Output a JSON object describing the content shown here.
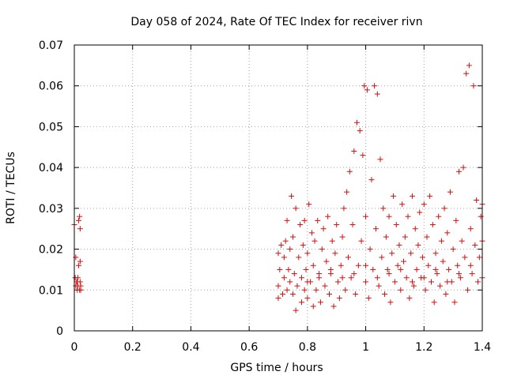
{
  "chart_data": {
    "type": "scatter",
    "title": "Day 058 of 2024, Rate Of TEC Index for receiver rivn",
    "xlabel": "GPS time / hours",
    "ylabel": "ROTI / TECUs",
    "xlim": [
      0,
      1.4
    ],
    "ylim": [
      0,
      0.07
    ],
    "x_ticks": [
      "0",
      "0.2",
      "0.4",
      "0.6",
      "0.8",
      "1",
      "1.2",
      "1.4"
    ],
    "y_ticks": [
      "0",
      "0.01",
      "0.02",
      "0.03",
      "0.04",
      "0.05",
      "0.06",
      "0.07"
    ],
    "grid": true,
    "marker": "+",
    "color": "#d01010",
    "series": [
      {
        "name": "ROTI",
        "points": [
          [
            0.0,
            0.026
          ],
          [
            0.005,
            0.018
          ],
          [
            0.008,
            0.012
          ],
          [
            0.01,
            0.01
          ],
          [
            0.012,
            0.011
          ],
          [
            0.015,
            0.027
          ],
          [
            0.018,
            0.028
          ],
          [
            0.02,
            0.017
          ],
          [
            0.02,
            0.012
          ],
          [
            0.022,
            0.01
          ],
          [
            0.005,
            0.011
          ],
          [
            0.012,
            0.013
          ],
          [
            0.015,
            0.016
          ],
          [
            0.018,
            0.01
          ],
          [
            0.02,
            0.025
          ],
          [
            0.003,
            0.013
          ],
          [
            0.01,
            0.012
          ],
          [
            0.022,
            0.011
          ],
          [
            0.7,
            0.008
          ],
          [
            0.7,
            0.011
          ],
          [
            0.7,
            0.019
          ],
          [
            0.705,
            0.015
          ],
          [
            0.71,
            0.021
          ],
          [
            0.715,
            0.009
          ],
          [
            0.72,
            0.013
          ],
          [
            0.72,
            0.018
          ],
          [
            0.725,
            0.022
          ],
          [
            0.73,
            0.01
          ],
          [
            0.73,
            0.027
          ],
          [
            0.735,
            0.015
          ],
          [
            0.74,
            0.012
          ],
          [
            0.74,
            0.02
          ],
          [
            0.745,
            0.033
          ],
          [
            0.75,
            0.009
          ],
          [
            0.75,
            0.023
          ],
          [
            0.755,
            0.014
          ],
          [
            0.76,
            0.005
          ],
          [
            0.76,
            0.03
          ],
          [
            0.765,
            0.011
          ],
          [
            0.77,
            0.018
          ],
          [
            0.775,
            0.026
          ],
          [
            0.78,
            0.007
          ],
          [
            0.78,
            0.013
          ],
          [
            0.785,
            0.021
          ],
          [
            0.79,
            0.01
          ],
          [
            0.79,
            0.027
          ],
          [
            0.795,
            0.015
          ],
          [
            0.8,
            0.008
          ],
          [
            0.8,
            0.019
          ],
          [
            0.805,
            0.031
          ],
          [
            0.81,
            0.012
          ],
          [
            0.815,
            0.024
          ],
          [
            0.82,
            0.006
          ],
          [
            0.82,
            0.016
          ],
          [
            0.825,
            0.022
          ],
          [
            0.83,
            0.01
          ],
          [
            0.835,
            0.027
          ],
          [
            0.84,
            0.014
          ],
          [
            0.845,
            0.007
          ],
          [
            0.85,
            0.02
          ],
          [
            0.855,
            0.025
          ],
          [
            0.86,
            0.011
          ],
          [
            0.865,
            0.017
          ],
          [
            0.87,
            0.028
          ],
          [
            0.875,
            0.009
          ],
          [
            0.88,
            0.014
          ],
          [
            0.885,
            0.022
          ],
          [
            0.89,
            0.006
          ],
          [
            0.895,
            0.019
          ],
          [
            0.9,
            0.026
          ],
          [
            0.905,
            0.012
          ],
          [
            0.91,
            0.008
          ],
          [
            0.915,
            0.016
          ],
          [
            0.92,
            0.023
          ],
          [
            0.925,
            0.03
          ],
          [
            0.93,
            0.01
          ],
          [
            0.935,
            0.034
          ],
          [
            0.94,
            0.018
          ],
          [
            0.945,
            0.039
          ],
          [
            0.95,
            0.013
          ],
          [
            0.955,
            0.026
          ],
          [
            0.96,
            0.044
          ],
          [
            0.965,
            0.009
          ],
          [
            0.97,
            0.051
          ],
          [
            0.975,
            0.016
          ],
          [
            0.98,
            0.049
          ],
          [
            0.985,
            0.022
          ],
          [
            0.99,
            0.043
          ],
          [
            0.995,
            0.06
          ],
          [
            1.0,
            0.028
          ],
          [
            1.0,
            0.012
          ],
          [
            1.005,
            0.059
          ],
          [
            1.01,
            0.008
          ],
          [
            1.015,
            0.02
          ],
          [
            1.02,
            0.037
          ],
          [
            1.025,
            0.015
          ],
          [
            1.03,
            0.06
          ],
          [
            1.035,
            0.025
          ],
          [
            1.04,
            0.058
          ],
          [
            1.045,
            0.011
          ],
          [
            1.05,
            0.042
          ],
          [
            1.055,
            0.018
          ],
          [
            1.06,
            0.03
          ],
          [
            1.065,
            0.009
          ],
          [
            1.07,
            0.023
          ],
          [
            1.075,
            0.015
          ],
          [
            1.08,
            0.028
          ],
          [
            1.085,
            0.007
          ],
          [
            1.09,
            0.019
          ],
          [
            1.095,
            0.033
          ],
          [
            1.1,
            0.012
          ],
          [
            1.105,
            0.026
          ],
          [
            1.11,
            0.016
          ],
          [
            1.115,
            0.021
          ],
          [
            1.12,
            0.01
          ],
          [
            1.125,
            0.031
          ],
          [
            1.13,
            0.017
          ],
          [
            1.135,
            0.023
          ],
          [
            1.14,
            0.013
          ],
          [
            1.145,
            0.028
          ],
          [
            1.15,
            0.008
          ],
          [
            1.155,
            0.019
          ],
          [
            1.16,
            0.033
          ],
          [
            1.165,
            0.011
          ],
          [
            1.17,
            0.025
          ],
          [
            1.175,
            0.015
          ],
          [
            1.18,
            0.021
          ],
          [
            1.185,
            0.029
          ],
          [
            1.19,
            0.013
          ],
          [
            1.195,
            0.018
          ],
          [
            1.2,
            0.031
          ],
          [
            1.205,
            0.01
          ],
          [
            1.21,
            0.023
          ],
          [
            1.215,
            0.016
          ],
          [
            1.22,
            0.033
          ],
          [
            1.225,
            0.012
          ],
          [
            1.23,
            0.026
          ],
          [
            1.235,
            0.007
          ],
          [
            1.24,
            0.019
          ],
          [
            1.245,
            0.014
          ],
          [
            1.25,
            0.028
          ],
          [
            1.255,
            0.011
          ],
          [
            1.26,
            0.022
          ],
          [
            1.265,
            0.017
          ],
          [
            1.27,
            0.03
          ],
          [
            1.275,
            0.009
          ],
          [
            1.28,
            0.024
          ],
          [
            1.285,
            0.015
          ],
          [
            1.29,
            0.034
          ],
          [
            1.295,
            0.012
          ],
          [
            1.3,
            0.02
          ],
          [
            1.305,
            0.007
          ],
          [
            1.31,
            0.027
          ],
          [
            1.315,
            0.016
          ],
          [
            1.32,
            0.039
          ],
          [
            1.325,
            0.013
          ],
          [
            1.33,
            0.022
          ],
          [
            1.335,
            0.04
          ],
          [
            1.34,
            0.018
          ],
          [
            1.345,
            0.063
          ],
          [
            1.35,
            0.01
          ],
          [
            1.355,
            0.065
          ],
          [
            1.36,
            0.025
          ],
          [
            1.365,
            0.014
          ],
          [
            1.37,
            0.06
          ],
          [
            1.375,
            0.021
          ],
          [
            1.38,
            0.032
          ],
          [
            1.385,
            0.012
          ],
          [
            1.39,
            0.018
          ],
          [
            1.395,
            0.028
          ],
          [
            1.4,
            0.013
          ],
          [
            1.4,
            0.022
          ],
          [
            1.4,
            0.031
          ],
          [
            0.88,
            0.015
          ],
          [
            0.92,
            0.013
          ],
          [
            0.96,
            0.014
          ],
          [
            1.0,
            0.016
          ],
          [
            1.04,
            0.013
          ],
          [
            1.08,
            0.014
          ],
          [
            1.12,
            0.015
          ],
          [
            1.16,
            0.012
          ],
          [
            1.2,
            0.013
          ],
          [
            1.24,
            0.015
          ],
          [
            1.28,
            0.012
          ],
          [
            1.32,
            0.014
          ],
          [
            1.36,
            0.016
          ],
          [
            0.8,
            0.012
          ],
          [
            0.84,
            0.013
          ]
        ]
      }
    ]
  }
}
